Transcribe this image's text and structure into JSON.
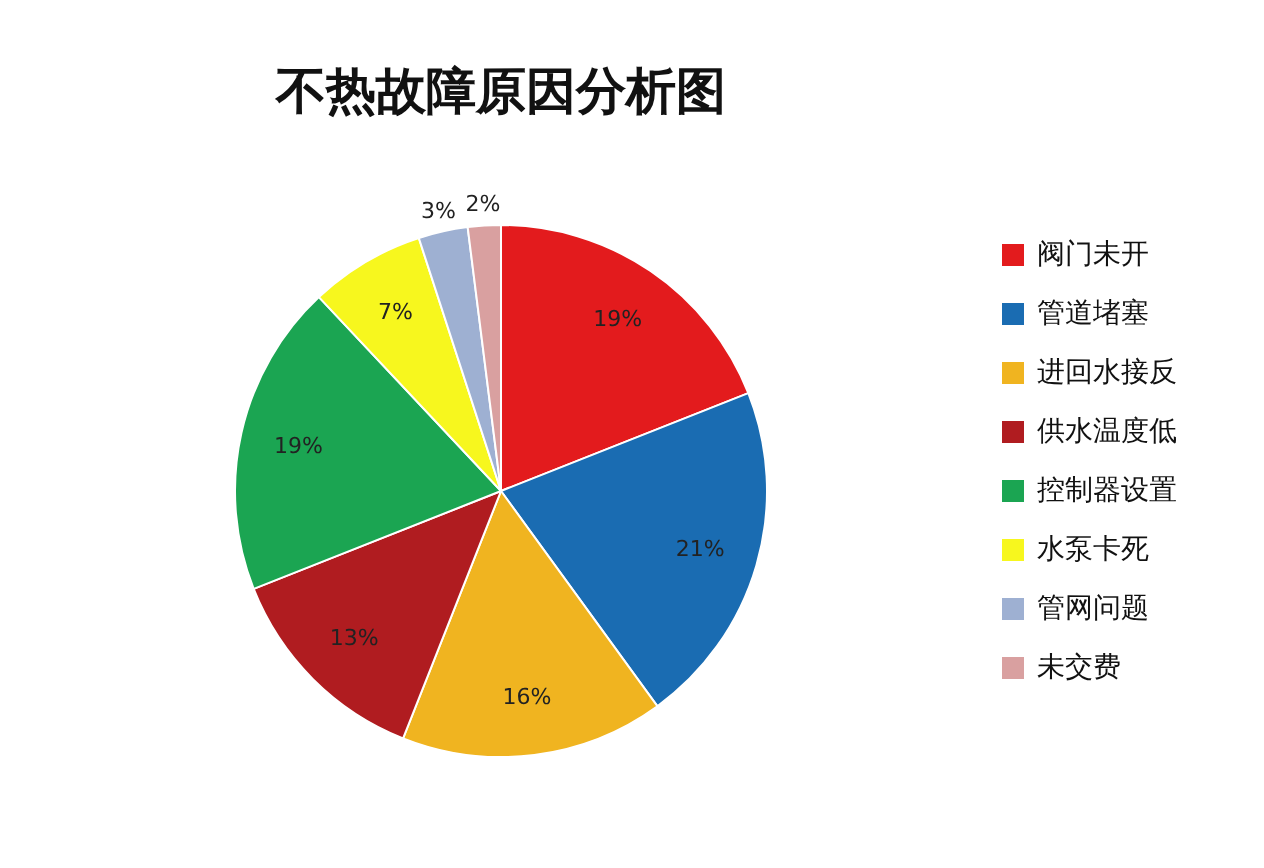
{
  "chart_data": {
    "type": "pie",
    "title": "不热故障原因分析图",
    "categories": [
      "阀门未开",
      "管道堵塞",
      "进回水接反",
      "供水温度低",
      "控制器设置",
      "水泵卡死",
      "管网问题",
      "未交费"
    ],
    "values": [
      19,
      21,
      16,
      13,
      19,
      7,
      3,
      2
    ],
    "value_labels": [
      "19%",
      "21%",
      "16%",
      "13%",
      "19%",
      "7%",
      "3%",
      "2%"
    ],
    "colors": [
      "#e31b1d",
      "#1a6cb2",
      "#f0b420",
      "#b01c20",
      "#1ba552",
      "#f7f71e",
      "#9eb0d2",
      "#d9a0a0"
    ],
    "legend": "right"
  }
}
